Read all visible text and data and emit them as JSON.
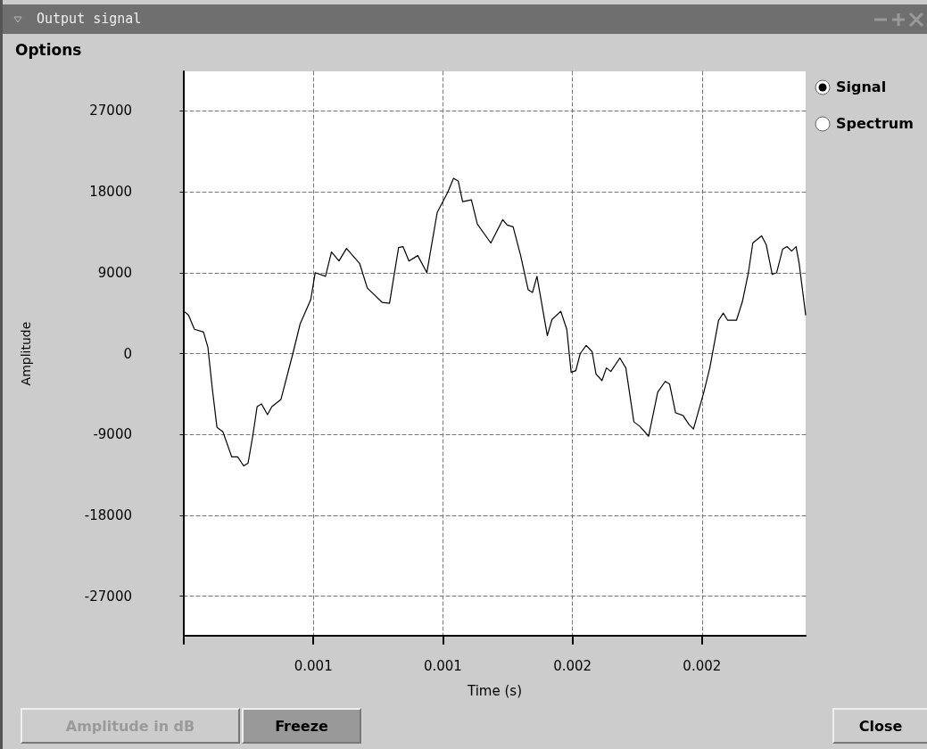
{
  "chart_data": {
    "type": "line",
    "title": "Output signal",
    "xlabel": "Time (s)",
    "ylabel": "Amplitude",
    "annotations": [
      "Options",
      "Signal",
      "Spectrum",
      "Amplitude in dB",
      "Freeze",
      "Close"
    ],
    "x": [
      0,
      1.8e-05,
      4.1e-05,
      7.6e-05,
      9.3e-05,
      0.00011,
      0.000128,
      0.000151,
      0.000185,
      0.000208,
      0.000231,
      0.000248,
      0.000266,
      0.000283,
      0.0003,
      0.000323,
      0.00034,
      0.000375,
      0.000421,
      0.000449,
      0.00049,
      0.000507,
      0.000547,
      0.00057,
      0.000599,
      0.000628,
      0.000679,
      0.000708,
      0.000765,
      0.000794,
      0.000829,
      0.000846,
      0.000869,
      0.000903,
      0.000938,
      0.000978,
      0.001018,
      0.001041,
      0.001059,
      0.001076,
      0.00111,
      0.001133,
      0.001185,
      0.001231,
      0.001248,
      0.001271,
      0.0013,
      0.001329,
      0.001346,
      0.001363,
      0.001403,
      0.001421,
      0.001455,
      0.001478,
      0.001495,
      0.001513,
      0.00153,
      0.001553,
      0.001576,
      0.001591,
      0.001614,
      0.001631,
      0.001648,
      0.001683,
      0.001706,
      0.001737,
      0.00176,
      0.001794,
      0.001829,
      0.001858,
      0.001875,
      0.001898,
      0.001927,
      0.00195,
      0.001967,
      0.002007,
      0.00203,
      0.002064,
      0.002082,
      0.002099,
      0.002133,
      0.002156,
      0.002179,
      0.002196,
      0.00223,
      0.002248,
      0.002271,
      0.002288,
      0.002311,
      0.002328,
      0.002346,
      0.002363,
      0.002375,
      0.0024
    ],
    "series": [
      {
        "color": "#000000",
        "values": [
          4700,
          4300,
          2700,
          2400,
          700,
          -3900,
          -8200,
          -8700,
          -11500,
          -11500,
          -12500,
          -12200,
          -9200,
          -5900,
          -5600,
          -6800,
          -5900,
          -5100,
          0,
          3300,
          6000,
          9000,
          8600,
          11300,
          10300,
          11700,
          10000,
          7300,
          5700,
          5600,
          11800,
          11900,
          10300,
          10900,
          9000,
          15700,
          17900,
          19500,
          19200,
          16900,
          17100,
          14400,
          12300,
          14900,
          14300,
          14100,
          10900,
          7100,
          6800,
          8600,
          2000,
          3800,
          4700,
          2700,
          -2100,
          -1900,
          0,
          900,
          200,
          -2300,
          -3000,
          -1600,
          -2000,
          -500,
          -1600,
          -7600,
          -8100,
          -9200,
          -4300,
          -3100,
          -3400,
          -6600,
          -6900,
          -7900,
          -8400,
          -4300,
          -1600,
          3700,
          4500,
          3700,
          3700,
          5800,
          9000,
          12300,
          13100,
          12100,
          8800,
          9000,
          11600,
          11900,
          11400,
          11900,
          10000,
          4300
        ]
      }
    ],
    "xlim": [
      0,
      0.0024
    ],
    "xticks": [
      {
        "value": 0,
        "label": null
      },
      {
        "value": 0.0005,
        "label": "0.001"
      },
      {
        "value": 0.001,
        "label": "0.001"
      },
      {
        "value": 0.0015,
        "label": "0.002"
      },
      {
        "value": 0.002,
        "label": "0.002"
      }
    ],
    "ylim": [
      -31400,
      31400
    ],
    "yticks": [
      -27000,
      -18000,
      -9000,
      0,
      9000,
      18000,
      27000
    ],
    "grid": true,
    "line_style": "solid"
  }
}
